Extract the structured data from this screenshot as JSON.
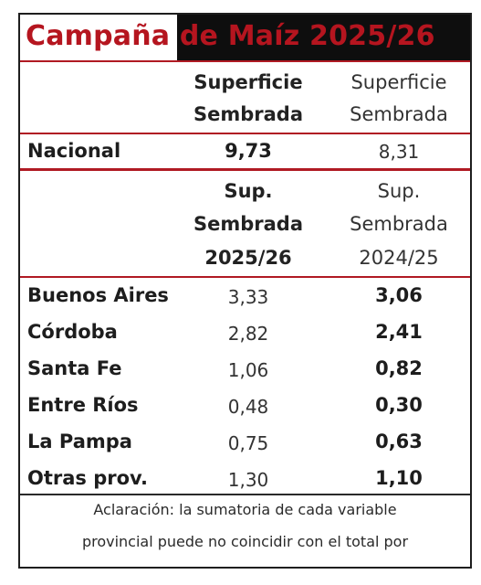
{
  "title": "Campaña de Maíz 2025/26",
  "header_top": {
    "col1": [
      "Superficie",
      "Sembrada"
    ],
    "col2": [
      "Superficie",
      "Sembrada"
    ]
  },
  "nacional": {
    "label": "Nacional",
    "v1": "9,73",
    "v2": "8,31"
  },
  "header_bottom": {
    "col1": [
      "Sup.",
      "Sembrada",
      "2025/26"
    ],
    "col2": [
      "Sup.",
      "Sembrada",
      "2024/25"
    ]
  },
  "rows": [
    {
      "name": "Buenos Aires",
      "v1": "3,33",
      "v2": "3,06"
    },
    {
      "name": "Córdoba",
      "v1": "2,82",
      "v2": "2,41"
    },
    {
      "name": "Santa Fe",
      "v1": "1,06",
      "v2": "0,82"
    },
    {
      "name": "Entre Ríos",
      "v1": "0,48",
      "v2": "0,30"
    },
    {
      "name": "La Pampa",
      "v1": "0,75",
      "v2": "0,63"
    },
    {
      "name": "Otras prov.",
      "v1": "1,30",
      "v2": "1,10"
    }
  ],
  "note": [
    "Aclaración: la sumatoria de cada variable",
    "provincial puede no coincidir con el total por"
  ],
  "colors": {
    "title_red": "#b5151f",
    "title_bar": "#0e0e0e",
    "rule_red": "#b01a23"
  }
}
